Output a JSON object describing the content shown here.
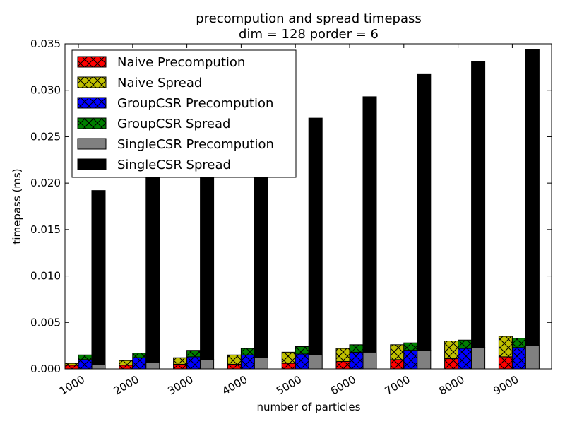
{
  "chart_data": {
    "type": "bar",
    "title": "precompution and spread timepass",
    "subtitle": "dim = 128 porder = 6",
    "xlabel": "number of particles",
    "ylabel": "timepass (ms)",
    "ylim": [
      0,
      0.035
    ],
    "yticks": [
      "0.000",
      "0.005",
      "0.010",
      "0.015",
      "0.020",
      "0.025",
      "0.030",
      "0.035"
    ],
    "categories": [
      "1000",
      "2000",
      "3000",
      "4000",
      "5000",
      "6000",
      "7000",
      "8000",
      "9000"
    ],
    "grid": false,
    "legend_position": "top-left",
    "stacks": [
      "Naive",
      "GroupCSR",
      "SingleCSR"
    ],
    "series": [
      {
        "name": "Naive Precompution",
        "stack": "Naive",
        "color": "#ff0000",
        "hatch": true,
        "values": [
          0.0004,
          0.0004,
          0.0005,
          0.0005,
          0.0006,
          0.0008,
          0.001,
          0.0011,
          0.0013
        ]
      },
      {
        "name": "Naive Spread",
        "stack": "Naive",
        "color": "#bfbf00",
        "hatch": true,
        "values": [
          0.0002,
          0.0005,
          0.0007,
          0.001,
          0.0012,
          0.0014,
          0.0016,
          0.0019,
          0.0022
        ]
      },
      {
        "name": "GroupCSR Precompution",
        "stack": "GroupCSR",
        "color": "#0000ff",
        "hatch": true,
        "values": [
          0.001,
          0.0012,
          0.0013,
          0.0015,
          0.0016,
          0.0018,
          0.002,
          0.0022,
          0.0023
        ]
      },
      {
        "name": "GroupCSR Spread",
        "stack": "GroupCSR",
        "color": "#007f00",
        "hatch": true,
        "values": [
          0.0005,
          0.0005,
          0.0007,
          0.0007,
          0.0008,
          0.0008,
          0.0008,
          0.0009,
          0.001
        ]
      },
      {
        "name": "SingleCSR Precompution",
        "stack": "SingleCSR",
        "color": "#808080",
        "hatch": false,
        "values": [
          0.0005,
          0.0007,
          0.001,
          0.0012,
          0.0015,
          0.0018,
          0.002,
          0.0023,
          0.0025
        ]
      },
      {
        "name": "SingleCSR Spread",
        "stack": "SingleCSR",
        "color": "#000000",
        "hatch": false,
        "values": [
          0.0187,
          0.0211,
          0.0221,
          0.0238,
          0.0255,
          0.0275,
          0.0297,
          0.0308,
          0.0319
        ]
      }
    ]
  }
}
